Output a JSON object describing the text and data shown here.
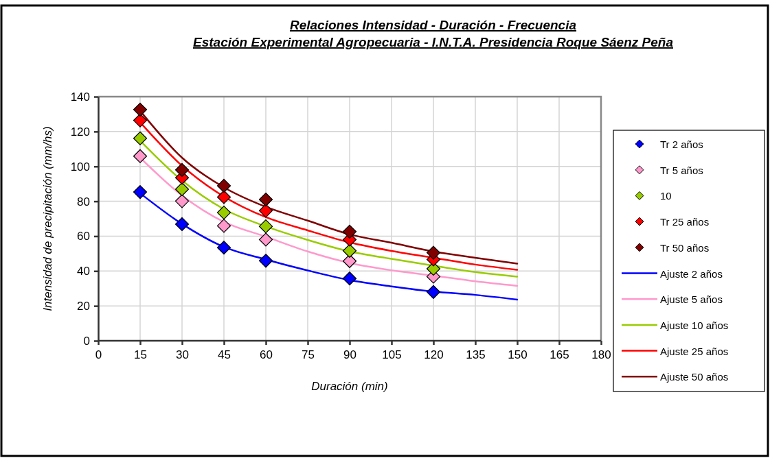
{
  "chart_data": {
    "type": "scatter",
    "title": "Relaciones Intensidad - Duración - Frecuencia",
    "subtitle": "Estación Experimental Agropecuaria - I.N.T.A. Presidencia Roque Sáenz Peña",
    "xlabel": "Duración (min)",
    "ylabel": "Intensidad de precipitación (mm/hs)",
    "x": [
      15,
      30,
      45,
      60,
      90,
      120
    ],
    "xlim": [
      0,
      180
    ],
    "xticks": [
      0,
      15,
      30,
      45,
      60,
      75,
      90,
      105,
      120,
      135,
      150,
      165,
      180
    ],
    "ylim": [
      0,
      140
    ],
    "yticks": [
      0,
      20,
      40,
      60,
      80,
      100,
      120,
      140
    ],
    "grid": true,
    "legend": "right",
    "series": [
      {
        "name": "Tr 2 años",
        "marker": "diamond",
        "color": "#0000ff",
        "values": [
          85.3,
          66.9,
          53.4,
          45.9,
          35.7,
          28.0
        ]
      },
      {
        "name": "Tr 5 años",
        "marker": "diamond",
        "color": "#ff99cc",
        "values": [
          105.9,
          80.1,
          65.9,
          58.0,
          45.7,
          36.8
        ]
      },
      {
        "name": "10",
        "marker": "diamond",
        "color": "#99cc00",
        "values": [
          116.1,
          86.9,
          73.5,
          65.6,
          51.6,
          41.3
        ]
      },
      {
        "name": "Tr 25 años",
        "marker": "diamond",
        "color": "#ff0000",
        "values": [
          126.4,
          93.5,
          82.4,
          74.6,
          58.0,
          46.6
        ]
      },
      {
        "name": "Tr 50 años",
        "marker": "diamond",
        "color": "#800000",
        "values": [
          132.6,
          98.0,
          88.9,
          81.0,
          62.6,
          50.5
        ]
      },
      {
        "name": "Ajuste 2 años",
        "type": "line",
        "marker": "none",
        "color": "#0000ff",
        "x": [
          15,
          30,
          45,
          60,
          75,
          90,
          105,
          120,
          135,
          150
        ],
        "values": [
          84.6,
          67.0,
          53.8,
          46.6,
          40.3,
          34.8,
          31.2,
          28.2,
          26.3,
          23.6
        ]
      },
      {
        "name": "Ajuste 5 años",
        "type": "line",
        "marker": "none",
        "color": "#ff99cc",
        "x": [
          15,
          30,
          45,
          60,
          75,
          90,
          105,
          120,
          135,
          150
        ],
        "values": [
          105.0,
          83.3,
          68.2,
          59.7,
          51.2,
          44.6,
          40.4,
          37.4,
          34.1,
          31.5
        ]
      },
      {
        "name": "Ajuste 10 años",
        "type": "line",
        "marker": "none",
        "color": "#99cc00",
        "x": [
          15,
          30,
          45,
          60,
          75,
          90,
          105,
          120,
          135,
          150
        ],
        "values": [
          114.8,
          91.9,
          75.5,
          65.6,
          57.8,
          51.2,
          47.0,
          43.1,
          39.4,
          36.8
        ]
      },
      {
        "name": "Ajuste 25 años",
        "type": "line",
        "marker": "none",
        "color": "#ff0000",
        "x": [
          15,
          30,
          45,
          60,
          75,
          90,
          105,
          120,
          135,
          150
        ],
        "values": [
          125.3,
          100.4,
          82.7,
          70.9,
          63.3,
          56.4,
          51.5,
          47.6,
          43.7,
          40.7
        ]
      },
      {
        "name": "Ajuste 50 años",
        "type": "line",
        "marker": "none",
        "color": "#800000",
        "x": [
          15,
          30,
          45,
          60,
          75,
          90,
          105,
          120,
          135,
          150
        ],
        "values": [
          131.9,
          105.0,
          88.0,
          76.8,
          68.9,
          61.0,
          56.2,
          51.2,
          47.6,
          44.2
        ]
      }
    ]
  }
}
